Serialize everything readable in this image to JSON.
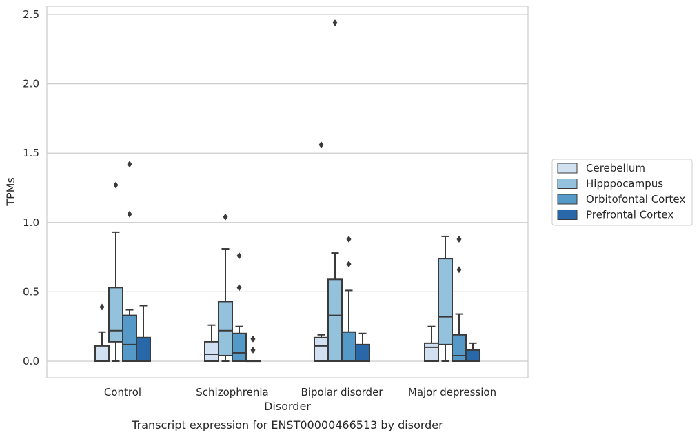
{
  "chart_data": {
    "type": "box",
    "title": "",
    "caption": "Transcript expression for ENST00000466513 by disorder",
    "xlabel": "Disorder",
    "ylabel": "TPMs",
    "ylim": [
      -0.12,
      2.57
    ],
    "yticks": [
      "0.0",
      "0.5",
      "1.0",
      "1.5",
      "2.0",
      "2.5"
    ],
    "ytick_values": [
      0,
      0.5,
      1.0,
      1.5,
      2.0,
      2.5
    ],
    "grid": "horizontal",
    "legend_position": "right",
    "categories": [
      "Control",
      "Schizophrenia",
      "Bipolar disorder",
      "Major depression"
    ],
    "series": [
      {
        "name": "Cerebellum",
        "color": "#d1e1f1",
        "boxes": [
          {
            "whislo": 0.0,
            "q1": 0.0,
            "med": 0.0,
            "q3": 0.11,
            "whishi": 0.21,
            "fliers": [
              0.39
            ]
          },
          {
            "whislo": 0.0,
            "q1": 0.0,
            "med": 0.05,
            "q3": 0.14,
            "whishi": 0.26,
            "fliers": []
          },
          {
            "whislo": 0.0,
            "q1": 0.0,
            "med": 0.11,
            "q3": 0.17,
            "whishi": 0.19,
            "fliers": [
              1.56
            ]
          },
          {
            "whislo": 0.0,
            "q1": 0.0,
            "med": 0.1,
            "q3": 0.13,
            "whishi": 0.25,
            "fliers": []
          }
        ]
      },
      {
        "name": "Hipppocampus",
        "color": "#94c2dc",
        "boxes": [
          {
            "whislo": 0.0,
            "q1": 0.14,
            "med": 0.22,
            "q3": 0.53,
            "whishi": 0.93,
            "fliers": [
              1.27
            ]
          },
          {
            "whislo": 0.0,
            "q1": 0.04,
            "med": 0.22,
            "q3": 0.43,
            "whishi": 0.81,
            "fliers": [
              1.04
            ]
          },
          {
            "whislo": 0.0,
            "q1": 0.0,
            "med": 0.33,
            "q3": 0.59,
            "whishi": 0.78,
            "fliers": [
              2.44
            ]
          },
          {
            "whislo": 0.0,
            "q1": 0.12,
            "med": 0.32,
            "q3": 0.74,
            "whishi": 0.9,
            "fliers": []
          }
        ]
      },
      {
        "name": "Orbitofontal Cortex",
        "color": "#5599c8",
        "boxes": [
          {
            "whislo": 0.0,
            "q1": 0.0,
            "med": 0.12,
            "q3": 0.33,
            "whishi": 0.37,
            "fliers": [
              1.06,
              1.42
            ]
          },
          {
            "whislo": 0.0,
            "q1": 0.0,
            "med": 0.06,
            "q3": 0.2,
            "whishi": 0.25,
            "fliers": [
              0.53,
              0.76
            ]
          },
          {
            "whislo": 0.0,
            "q1": 0.0,
            "med": 0.0,
            "q3": 0.21,
            "whishi": 0.51,
            "fliers": [
              0.7,
              0.88
            ]
          },
          {
            "whislo": 0.0,
            "q1": 0.0,
            "med": 0.04,
            "q3": 0.19,
            "whishi": 0.34,
            "fliers": [
              0.66,
              0.88
            ]
          }
        ]
      },
      {
        "name": "Prefrontal Cortex",
        "color": "#2868a8",
        "boxes": [
          {
            "whislo": 0.0,
            "q1": 0.0,
            "med": 0.0,
            "q3": 0.17,
            "whishi": 0.4,
            "fliers": []
          },
          {
            "whislo": 0.0,
            "q1": 0.0,
            "med": 0.0,
            "q3": 0.0,
            "whishi": 0.0,
            "fliers": [
              0.08,
              0.16
            ]
          },
          {
            "whislo": 0.0,
            "q1": 0.0,
            "med": 0.0,
            "q3": 0.12,
            "whishi": 0.2,
            "fliers": []
          },
          {
            "whislo": 0.0,
            "q1": 0.0,
            "med": 0.0,
            "q3": 0.08,
            "whishi": 0.13,
            "fliers": []
          }
        ]
      }
    ]
  }
}
